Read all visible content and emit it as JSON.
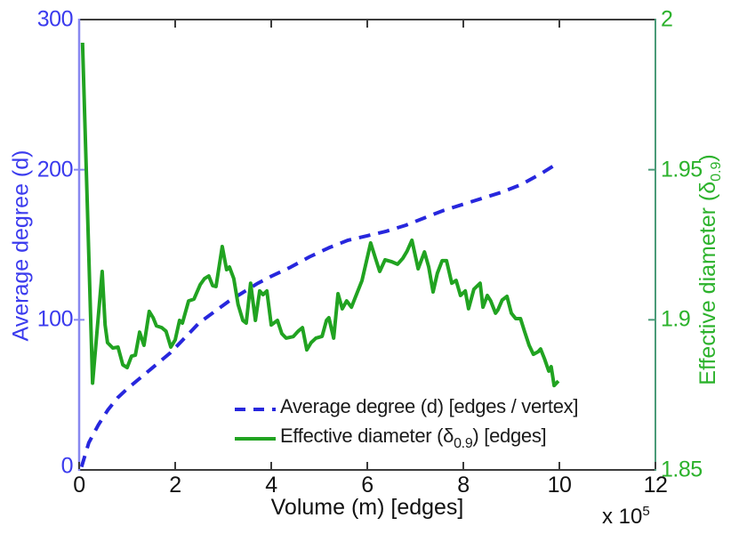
{
  "colors": {
    "blue_text": "#3b3bee",
    "blue_line": "#2727dd",
    "blue_axis": "#8888f0",
    "green_line": "#21a321",
    "green_text": "#2cb22c",
    "green_axis": "#4a9b78",
    "frame": "#3c3c3c",
    "background": "#ffffff"
  },
  "chart_data": {
    "type": "line",
    "title": "",
    "xlabel": "Volume (m) [edges]",
    "x_scale": {
      "pre": "x 10",
      "sup": "5"
    },
    "xlim": [
      0,
      12
    ],
    "x_ticks": [
      "0",
      "2",
      "4",
      "6",
      "8",
      "10",
      "12"
    ],
    "x_tick_values": [
      0,
      2,
      4,
      6,
      8,
      10,
      12
    ],
    "grid": false,
    "legend_position": "inside-bottom-center",
    "left_axis": {
      "label": "Average degree (d)",
      "lim": [
        0,
        300
      ],
      "ticks": [
        "300",
        "200",
        "100",
        "0"
      ],
      "tick_values": [
        300,
        200,
        100,
        0
      ],
      "color": "#3b3bee"
    },
    "right_axis": {
      "label_pre": "Effective diameter (δ",
      "label_sub": "0.9",
      "label_post": ")",
      "lim": [
        1.85,
        2.0
      ],
      "ticks": [
        "2",
        "1.95",
        "1.9",
        "1.85"
      ],
      "tick_values": [
        2,
        1.95,
        1.9,
        1.85
      ],
      "color": "#2cb22c"
    },
    "legend": {
      "items": [
        {
          "pre": "Average degree (d) [edges / vertex]",
          "sub": "",
          "post": ""
        },
        {
          "pre": "Effective diameter (δ",
          "sub": "0.9",
          "post": ") [edges]"
        }
      ]
    },
    "series": [
      {
        "name": "Average degree (d) [edges / vertex]",
        "axis": "left",
        "style": "dashed",
        "color": "#2727dd",
        "points": [
          [
            0.05,
            2
          ],
          [
            0.2,
            18
          ],
          [
            0.4,
            30
          ],
          [
            0.6,
            40
          ],
          [
            0.8,
            48
          ],
          [
            1.0,
            54
          ],
          [
            1.3,
            62
          ],
          [
            1.6,
            70
          ],
          [
            1.9,
            78
          ],
          [
            2.2,
            88
          ],
          [
            2.5,
            98
          ],
          [
            2.8,
            105
          ],
          [
            3.1,
            112
          ],
          [
            3.4,
            118
          ],
          [
            3.7,
            124
          ],
          [
            4.0,
            129
          ],
          [
            4.4,
            135
          ],
          [
            4.8,
            142
          ],
          [
            5.2,
            148
          ],
          [
            5.6,
            153
          ],
          [
            6.0,
            156
          ],
          [
            6.4,
            159
          ],
          [
            6.8,
            163
          ],
          [
            7.2,
            168
          ],
          [
            7.6,
            173
          ],
          [
            8.0,
            177
          ],
          [
            8.4,
            181
          ],
          [
            8.8,
            185
          ],
          [
            9.2,
            190
          ],
          [
            9.6,
            197
          ],
          [
            10.0,
            205
          ]
        ]
      },
      {
        "name": "Effective diameter (δ0.9) [edges]",
        "axis": "right",
        "style": "solid",
        "color": "#21a321",
        "points": [
          [
            0.07,
            1.9923
          ],
          [
            0.28,
            1.8789
          ],
          [
            0.48,
            1.9161
          ],
          [
            0.54,
            1.8983
          ],
          [
            0.59,
            1.8924
          ],
          [
            0.7,
            1.8906
          ],
          [
            0.81,
            1.8909
          ],
          [
            0.91,
            1.885
          ],
          [
            1.0,
            1.8841
          ],
          [
            1.09,
            1.8879
          ],
          [
            1.17,
            1.8882
          ],
          [
            1.26,
            1.8959
          ],
          [
            1.35,
            1.8915
          ],
          [
            1.46,
            1.9028
          ],
          [
            1.54,
            1.9007
          ],
          [
            1.61,
            1.898
          ],
          [
            1.72,
            1.8974
          ],
          [
            1.81,
            1.8962
          ],
          [
            1.91,
            1.8909
          ],
          [
            2.0,
            1.8933
          ],
          [
            2.09,
            1.8998
          ],
          [
            2.15,
            1.8989
          ],
          [
            2.28,
            1.9063
          ],
          [
            2.39,
            1.9069
          ],
          [
            2.52,
            1.9117
          ],
          [
            2.61,
            1.9137
          ],
          [
            2.7,
            1.9146
          ],
          [
            2.78,
            1.9114
          ],
          [
            2.85,
            1.9111
          ],
          [
            2.98,
            1.9244
          ],
          [
            3.07,
            1.9167
          ],
          [
            3.13,
            1.9176
          ],
          [
            3.22,
            1.9137
          ],
          [
            3.31,
            1.9051
          ],
          [
            3.41,
            1.8998
          ],
          [
            3.48,
            1.8989
          ],
          [
            3.57,
            1.9122
          ],
          [
            3.67,
            1.8998
          ],
          [
            3.76,
            1.9096
          ],
          [
            3.83,
            1.9084
          ],
          [
            3.91,
            1.9096
          ],
          [
            4.0,
            1.8983
          ],
          [
            4.13,
            1.8998
          ],
          [
            4.22,
            1.8954
          ],
          [
            4.31,
            1.8939
          ],
          [
            4.46,
            1.8944
          ],
          [
            4.56,
            1.8962
          ],
          [
            4.65,
            1.8974
          ],
          [
            4.74,
            1.89
          ],
          [
            4.83,
            1.8924
          ],
          [
            4.93,
            1.8939
          ],
          [
            5.06,
            1.8945
          ],
          [
            5.15,
            1.8998
          ],
          [
            5.2,
            1.9007
          ],
          [
            5.3,
            1.8939
          ],
          [
            5.39,
            1.9087
          ],
          [
            5.48,
            1.9037
          ],
          [
            5.57,
            1.9063
          ],
          [
            5.67,
            1.9042
          ],
          [
            5.76,
            1.9078
          ],
          [
            5.89,
            1.9131
          ],
          [
            6.07,
            1.9256
          ],
          [
            6.17,
            1.9205
          ],
          [
            6.26,
            1.9161
          ],
          [
            6.37,
            1.92
          ],
          [
            6.5,
            1.9194
          ],
          [
            6.63,
            1.9185
          ],
          [
            6.74,
            1.9205
          ],
          [
            6.83,
            1.9229
          ],
          [
            6.93,
            1.9265
          ],
          [
            7.06,
            1.917
          ],
          [
            7.19,
            1.9226
          ],
          [
            7.28,
            1.9176
          ],
          [
            7.37,
            1.9093
          ],
          [
            7.46,
            1.9155
          ],
          [
            7.56,
            1.9197
          ],
          [
            7.65,
            1.9197
          ],
          [
            7.76,
            1.9122
          ],
          [
            7.85,
            1.9131
          ],
          [
            7.94,
            1.9081
          ],
          [
            8.04,
            1.9096
          ],
          [
            8.11,
            1.9037
          ],
          [
            8.22,
            1.9102
          ],
          [
            8.35,
            1.9122
          ],
          [
            8.41,
            1.9042
          ],
          [
            8.5,
            1.9081
          ],
          [
            8.57,
            1.9063
          ],
          [
            8.67,
            1.9022
          ],
          [
            8.72,
            1.9033
          ],
          [
            8.81,
            1.9066
          ],
          [
            8.91,
            1.9078
          ],
          [
            9.0,
            1.9022
          ],
          [
            9.09,
            1.9004
          ],
          [
            9.19,
            1.9004
          ],
          [
            9.28,
            1.8959
          ],
          [
            9.37,
            1.8915
          ],
          [
            9.46,
            1.8885
          ],
          [
            9.56,
            1.8894
          ],
          [
            9.61,
            1.8903
          ],
          [
            9.69,
            1.887
          ],
          [
            9.78,
            1.8829
          ],
          [
            9.83,
            1.8844
          ],
          [
            9.89,
            1.8781
          ],
          [
            9.98,
            1.8796
          ]
        ]
      }
    ]
  }
}
